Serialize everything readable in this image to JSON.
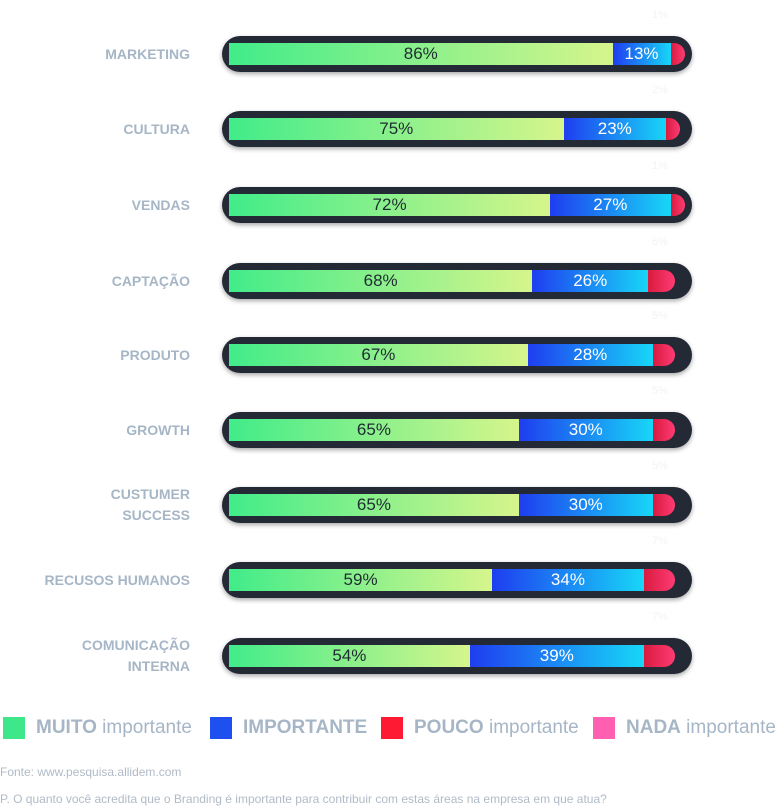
{
  "chart_data": {
    "type": "bar",
    "stacked": true,
    "orientation": "horizontal",
    "categories": [
      "MARKETING",
      "CULTURA",
      "VENDAS",
      "CAPTAÇÃO",
      "PRODUTO",
      "GROWTH",
      "CUSTUMER\nSUCCESS",
      "RECUSOS HUMANOS",
      "COMUNICAÇÃO\nINTERNA"
    ],
    "series": [
      {
        "name": "MUITO importante",
        "color": "#3ee88a",
        "values": [
          86,
          75,
          72,
          68,
          67,
          65,
          65,
          59,
          54
        ],
        "labels": [
          "86%",
          "75%",
          "72%",
          "68%",
          "67%",
          "65%",
          "65%",
          "59%",
          "54%"
        ]
      },
      {
        "name": "IMPORTANTE",
        "color": "#1e50f0",
        "values": [
          13,
          23,
          27,
          26,
          28,
          30,
          30,
          34,
          39
        ],
        "labels": [
          "13%",
          "23%",
          "27%",
          "26%",
          "28%",
          "30%",
          "30%",
          "34%",
          "39%"
        ]
      },
      {
        "name": "POUCO importante",
        "color": "#ff1a33",
        "values": [
          1,
          2,
          1,
          6,
          5,
          5,
          5,
          7,
          7
        ],
        "labels": [
          "1%",
          "2%",
          "1%",
          "6%",
          "5%",
          "5%",
          "5%",
          "7%",
          "7%"
        ]
      },
      {
        "name": "NADA importante",
        "color": "#ff5fb0",
        "values": [
          0,
          0,
          0,
          0,
          0,
          0,
          0,
          0,
          0
        ]
      }
    ],
    "xlim": [
      0,
      100
    ],
    "legend": "bottom"
  },
  "legend": [
    {
      "bold": "MUITO",
      "rest": " importante",
      "color": "#3ee88a"
    },
    {
      "bold": "IMPORTANTE",
      "rest": "",
      "color": "#1e50f0"
    },
    {
      "bold": "POUCO",
      "rest": " importante",
      "color": "#ff1a33"
    },
    {
      "bold": "NADA",
      "rest": " importante",
      "color": "#ff5fb0"
    }
  ],
  "source": "Fonte: www.pesquisa.allidem.com",
  "question": "P. O quanto você acredita que o Branding é importante para contribuir com estas áreas na empresa em que atua?"
}
